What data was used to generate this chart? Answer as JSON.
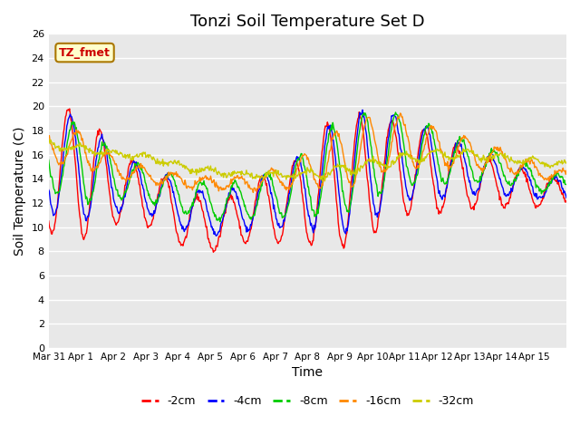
{
  "title": "Tonzi Soil Temperature Set D",
  "xlabel": "Time",
  "ylabel": "Soil Temperature (C)",
  "annotation": "TZ_fmet",
  "ylim": [
    0,
    26
  ],
  "yticks": [
    0,
    2,
    4,
    6,
    8,
    10,
    12,
    14,
    16,
    18,
    20,
    22,
    24,
    26
  ],
  "xtick_labels": [
    "Mar 31",
    "Apr 1",
    "Apr 2",
    "Apr 3",
    "Apr 4",
    "Apr 5",
    "Apr 6",
    "Apr 7",
    "Apr 8",
    "Apr 9",
    "Apr 10",
    "Apr 11",
    "Apr 12",
    "Apr 13",
    "Apr 14",
    "Apr 15"
  ],
  "series_colors": [
    "#ff0000",
    "#0000ff",
    "#00cc00",
    "#ff8800",
    "#cccc00"
  ],
  "series_labels": [
    "-2cm",
    "-4cm",
    "-8cm",
    "-16cm",
    "-32cm"
  ],
  "plot_bg_color": "#e8e8e8",
  "title_fontsize": 13,
  "axis_label_fontsize": 10,
  "annotation_bg": "#ffffcc",
  "annotation_border": "#aa7700"
}
